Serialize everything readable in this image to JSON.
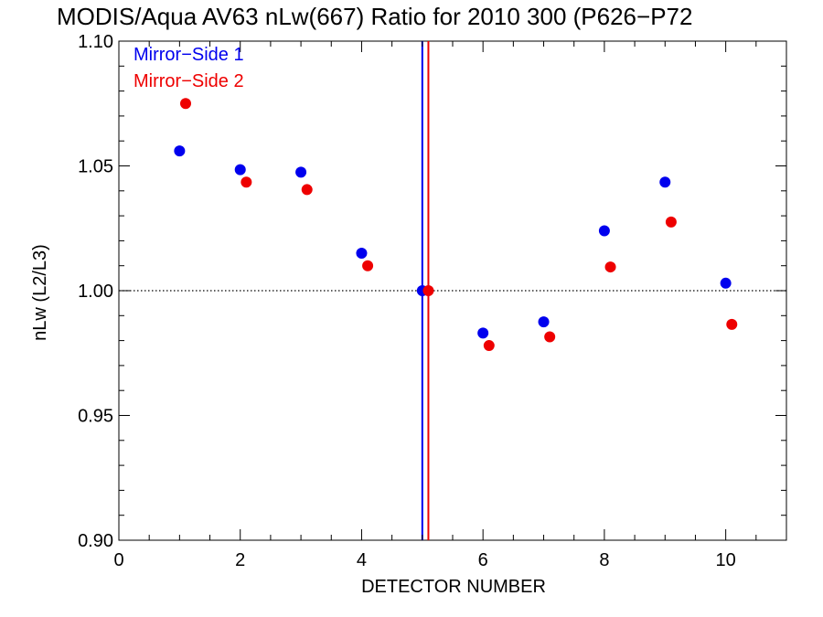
{
  "chart_data": {
    "type": "scatter",
    "title": "MODIS/Aqua AV63 nLw(667) Ratio for 2010 300 (P626−P72",
    "xlabel": "DETECTOR NUMBER",
    "ylabel": "nLw (L2/L3)",
    "xlim": [
      0,
      11
    ],
    "ylim": [
      0.9,
      1.1
    ],
    "xticks": [
      0,
      2,
      4,
      6,
      8,
      10
    ],
    "xtick_labels": [
      "0",
      "2",
      "4",
      "6",
      "8",
      "10"
    ],
    "yticks": [
      0.9,
      0.95,
      1.0,
      1.05,
      1.1
    ],
    "ytick_labels": [
      "0.90",
      "0.95",
      "1.00",
      "1.05",
      "1.10"
    ],
    "reference_line_y": 1.0,
    "vertical_lines": [
      {
        "x": 5.0,
        "color": "#0000ee"
      },
      {
        "x": 5.1,
        "color": "#ee0000"
      }
    ],
    "legend_position": "top-left",
    "grid": false,
    "series": [
      {
        "name": "Mirror−Side 1",
        "color": "#0000ee",
        "x": [
          1,
          2,
          3,
          4,
          5,
          6,
          7,
          8,
          9,
          10
        ],
        "y": [
          1.056,
          1.0485,
          1.0475,
          1.015,
          1.0,
          0.983,
          0.9875,
          1.024,
          1.0435,
          1.003
        ]
      },
      {
        "name": "Mirror−Side 2",
        "color": "#ee0000",
        "x": [
          1.1,
          2.1,
          3.1,
          4.1,
          5.1,
          6.1,
          7.1,
          8.1,
          9.1,
          10.1
        ],
        "y": [
          1.075,
          1.0435,
          1.0405,
          1.01,
          1.0,
          0.978,
          0.9815,
          1.0095,
          1.0275,
          0.9865
        ]
      }
    ]
  }
}
